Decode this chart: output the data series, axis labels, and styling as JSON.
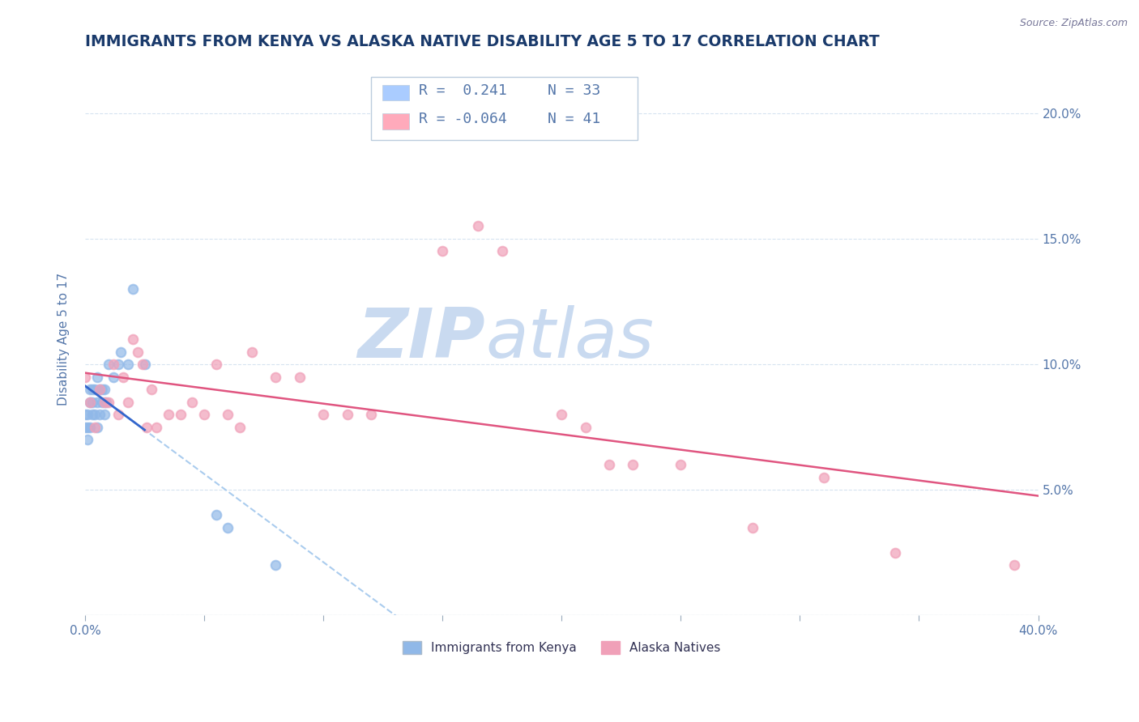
{
  "title": "IMMIGRANTS FROM KENYA VS ALASKA NATIVE DISABILITY AGE 5 TO 17 CORRELATION CHART",
  "source": "Source: ZipAtlas.com",
  "ylabel": "Disability Age 5 to 17",
  "yticks": [
    0.0,
    0.05,
    0.1,
    0.15,
    0.2
  ],
  "ytick_labels": [
    "",
    "5.0%",
    "10.0%",
    "15.0%",
    "20.0%"
  ],
  "xlim": [
    0.0,
    0.4
  ],
  "ylim": [
    0.0,
    0.22
  ],
  "legend_entries": [
    {
      "label_r": "R =  0.241",
      "label_n": "N = 33",
      "color": "#aaccff"
    },
    {
      "label_r": "R = -0.064",
      "label_n": "N = 41",
      "color": "#ffaabb"
    }
  ],
  "watermark": "ZIPatlas",
  "scatter_blue": {
    "x": [
      0.0,
      0.0,
      0.001,
      0.001,
      0.001,
      0.002,
      0.002,
      0.002,
      0.003,
      0.003,
      0.003,
      0.004,
      0.004,
      0.005,
      0.005,
      0.005,
      0.006,
      0.006,
      0.007,
      0.007,
      0.008,
      0.008,
      0.009,
      0.01,
      0.012,
      0.014,
      0.015,
      0.018,
      0.02,
      0.025,
      0.055,
      0.06,
      0.08
    ],
    "y": [
      0.075,
      0.08,
      0.07,
      0.075,
      0.08,
      0.075,
      0.085,
      0.09,
      0.08,
      0.085,
      0.09,
      0.08,
      0.09,
      0.075,
      0.085,
      0.095,
      0.08,
      0.09,
      0.085,
      0.09,
      0.08,
      0.09,
      0.085,
      0.1,
      0.095,
      0.1,
      0.105,
      0.1,
      0.13,
      0.1,
      0.04,
      0.035,
      0.02
    ],
    "color": "#90b8e8",
    "R": 0.241,
    "N": 33
  },
  "scatter_pink": {
    "x": [
      0.0,
      0.002,
      0.004,
      0.006,
      0.008,
      0.01,
      0.012,
      0.014,
      0.016,
      0.018,
      0.02,
      0.022,
      0.024,
      0.026,
      0.028,
      0.03,
      0.035,
      0.04,
      0.045,
      0.05,
      0.055,
      0.06,
      0.065,
      0.07,
      0.08,
      0.09,
      0.1,
      0.11,
      0.12,
      0.15,
      0.165,
      0.175,
      0.2,
      0.21,
      0.22,
      0.23,
      0.25,
      0.28,
      0.31,
      0.34,
      0.39
    ],
    "y": [
      0.095,
      0.085,
      0.075,
      0.09,
      0.085,
      0.085,
      0.1,
      0.08,
      0.095,
      0.085,
      0.11,
      0.105,
      0.1,
      0.075,
      0.09,
      0.075,
      0.08,
      0.08,
      0.085,
      0.08,
      0.1,
      0.08,
      0.075,
      0.105,
      0.095,
      0.095,
      0.08,
      0.08,
      0.08,
      0.145,
      0.155,
      0.145,
      0.08,
      0.075,
      0.06,
      0.06,
      0.06,
      0.035,
      0.055,
      0.025,
      0.02
    ],
    "color": "#f0a0b8",
    "R": -0.064,
    "N": 41
  },
  "trendline_blue_solid": {
    "color": "#3366cc",
    "linestyle": "solid",
    "linewidth": 2.0
  },
  "trendline_blue_dashed": {
    "color": "#aaccee",
    "linestyle": "dashed",
    "linewidth": 1.5
  },
  "trendline_pink": {
    "color": "#e05580",
    "linestyle": "solid",
    "linewidth": 1.8
  },
  "title_color": "#1a3a6b",
  "axis_color": "#5577aa",
  "background_color": "#ffffff",
  "grid_color": "#ccdded",
  "watermark_color": "#c0d4ee",
  "title_fontsize": 13.5,
  "axis_label_fontsize": 11,
  "tick_fontsize": 11,
  "legend_fontsize": 13
}
